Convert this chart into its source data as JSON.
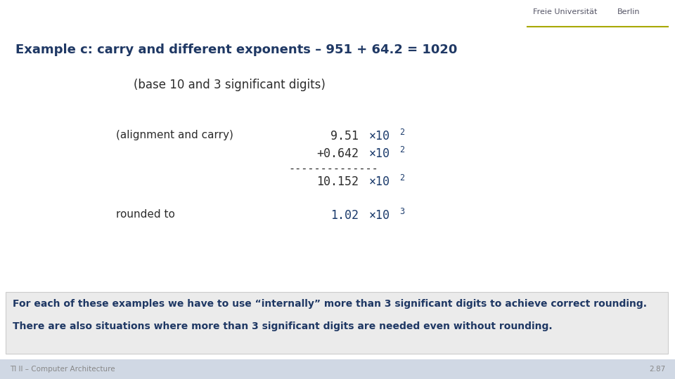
{
  "title": "Example c: carry and different exponents – 951 + 64.2 = 1020",
  "title_color": "#1f3864",
  "subtitle": "(base 10 and 3 significant digits)",
  "label_align": "(alignment and carry)",
  "label_rounded": "rounded to",
  "row1_mantissa": "9.51",
  "row2_mantissa": "+0.642",
  "row3_mantissa": "10.152",
  "row4_mantissa": "1.02",
  "exp_base": "×10",
  "row1_power": "2",
  "row2_power": "2",
  "row3_power": "2",
  "row4_power": "3",
  "separator": "--------------",
  "dark_text": "#2c2c2c",
  "blue_exp_color": "#1a3a6b",
  "rounded_color": "#1a3a6b",
  "footer_text1": "For each of these examples we have to use “internally” more than 3 significant digits to achieve correct rounding.",
  "footer_text2": "There are also situations where more than 3 significant digits are needed even without rounding.",
  "footer_text_color": "#1f3864",
  "footer_bg": "#ebebeb",
  "footer_border": "#cccccc",
  "slide_bg": "#ffffff",
  "bottom_left": "TI II – Computer Architecture",
  "bottom_right": "2.87",
  "bottom_color": "#888888",
  "bottom_bar_bg": "#d0d8e4"
}
